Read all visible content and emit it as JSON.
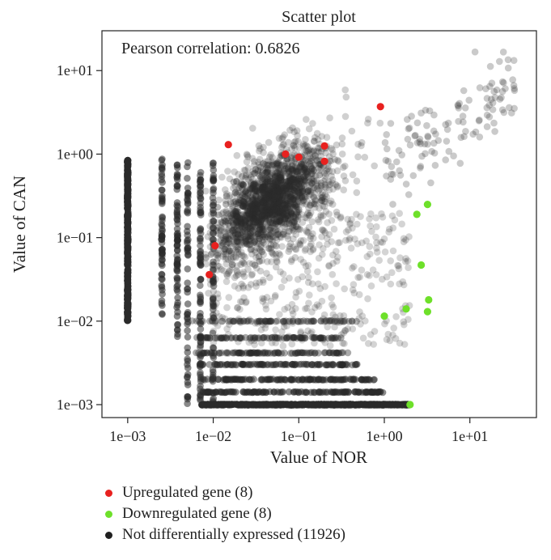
{
  "chart_data": {
    "type": "scatter",
    "title": "Scatter plot",
    "annotation": "Pearson correlation: 0.6826",
    "xlabel": "Value of NOR",
    "ylabel": "Value of CAN",
    "x_scale": "log",
    "y_scale": "log",
    "xlim": [
      0.0005,
      60
    ],
    "ylim": [
      0.0007,
      30
    ],
    "x_ticks": [
      0.001,
      0.01,
      0.1,
      1,
      10
    ],
    "x_tick_labels": [
      "1e−03",
      "1e−02",
      "1e−01",
      "1e+00",
      "1e+01"
    ],
    "y_ticks": [
      0.001,
      0.01,
      0.1,
      1,
      10
    ],
    "y_tick_labels": [
      "1e−03",
      "1e−02",
      "1e−01",
      "1e+00",
      "1e+01"
    ],
    "grid": false,
    "legend_position": "bottom-left",
    "series": [
      {
        "name": "Upregulated gene (8)",
        "color": "#e8211f",
        "points": [
          [
            0.015,
            1.3
          ],
          [
            0.07,
            1.0
          ],
          [
            0.1,
            0.92
          ],
          [
            0.2,
            1.25
          ],
          [
            0.2,
            0.82
          ],
          [
            0.9,
            3.7
          ],
          [
            0.0105,
            0.08
          ],
          [
            0.009,
            0.036
          ]
        ]
      },
      {
        "name": "Downregulated gene (8)",
        "color": "#6ee02a",
        "points": [
          [
            3.2,
            0.25
          ],
          [
            2.4,
            0.19
          ],
          [
            2.7,
            0.047
          ],
          [
            3.3,
            0.018
          ],
          [
            3.2,
            0.013
          ],
          [
            1.8,
            0.014
          ],
          [
            1.0,
            0.0115
          ],
          [
            2.0,
            0.001
          ]
        ]
      },
      {
        "name": "Not differentially expressed (11926)",
        "color": "#1f1f1f"
      }
    ]
  }
}
